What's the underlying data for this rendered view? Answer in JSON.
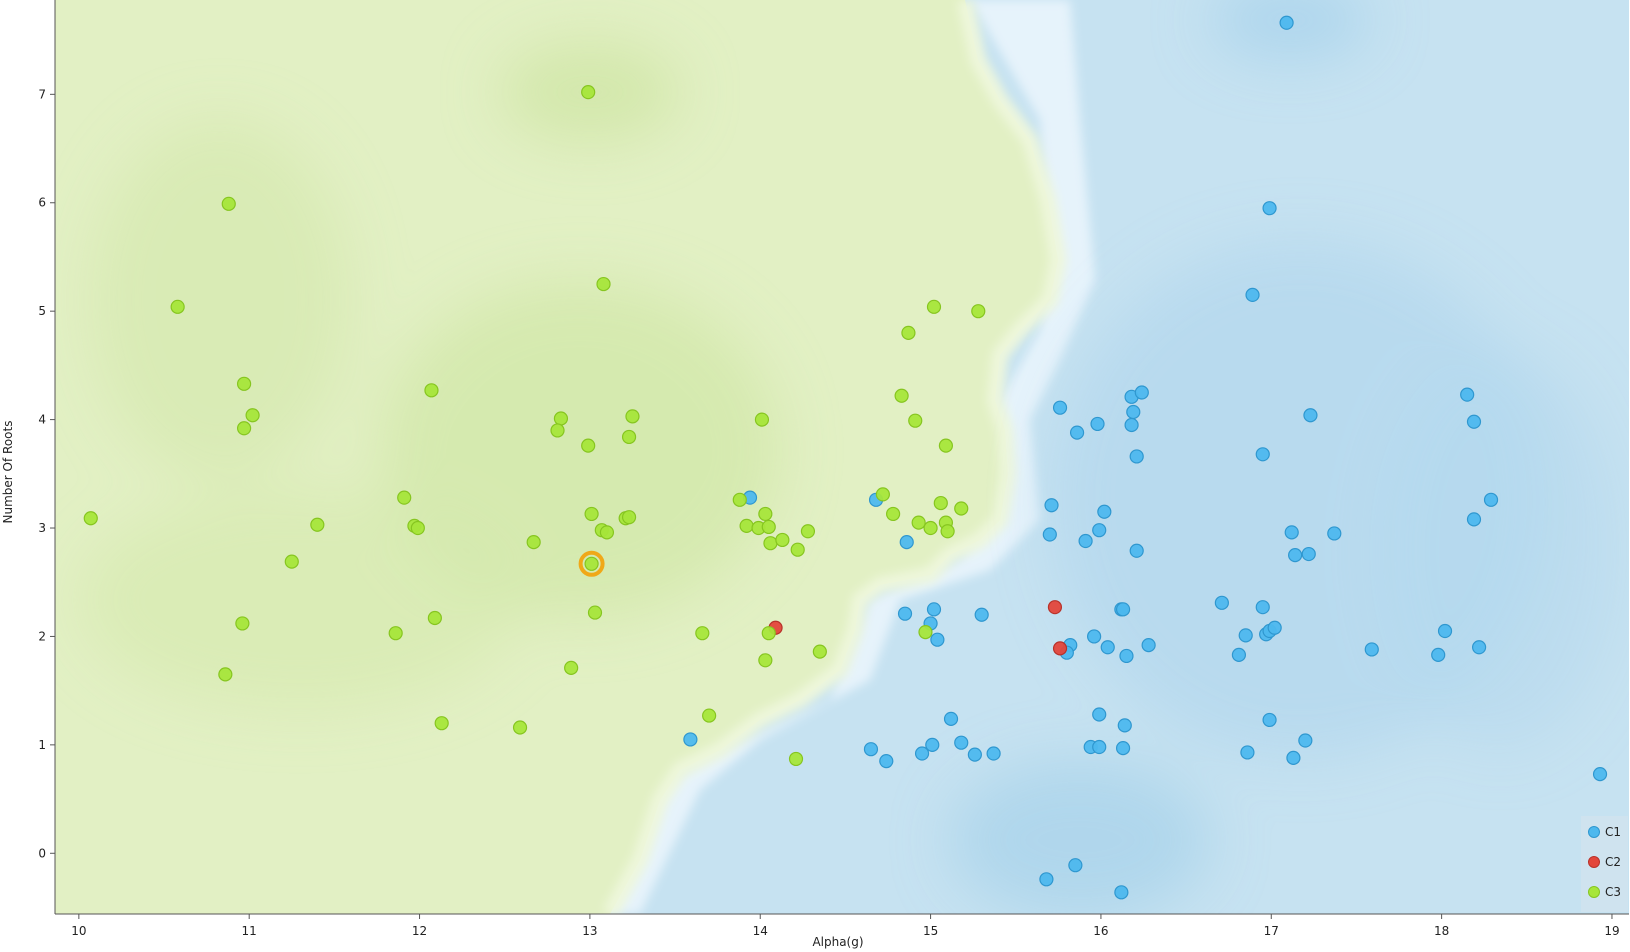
{
  "chart_data": {
    "type": "scatter",
    "title": "",
    "xlabel": "Alpha(g)",
    "ylabel": "Number Of Roots",
    "xlim": [
      9.86,
      19.1
    ],
    "ylim": [
      -0.56,
      7.87
    ],
    "xticks": [
      10,
      11,
      12,
      13,
      14,
      15,
      16,
      17,
      18,
      19
    ],
    "yticks": [
      0,
      1,
      2,
      3,
      4,
      5,
      6,
      7
    ],
    "grid": false,
    "legend_position": "bottom-right",
    "selected_point": {
      "series": "C3",
      "x": 13.01,
      "y": 2.67
    },
    "series": [
      {
        "name": "C1",
        "color": "#4db8ee",
        "points": [
          [
            17.09,
            7.66
          ],
          [
            16.99,
            5.95
          ],
          [
            16.89,
            5.15
          ],
          [
            15.76,
            4.11
          ],
          [
            15.86,
            3.88
          ],
          [
            15.98,
            3.96
          ],
          [
            16.18,
            4.21
          ],
          [
            16.24,
            4.25
          ],
          [
            16.19,
            4.07
          ],
          [
            16.18,
            3.95
          ],
          [
            16.21,
            3.66
          ],
          [
            16.95,
            3.68
          ],
          [
            17.23,
            4.04
          ],
          [
            18.15,
            4.23
          ],
          [
            18.19,
            3.98
          ],
          [
            15.71,
            3.21
          ],
          [
            15.7,
            2.94
          ],
          [
            15.91,
            2.88
          ],
          [
            15.99,
            2.98
          ],
          [
            16.02,
            3.15
          ],
          [
            16.21,
            2.79
          ],
          [
            17.12,
            2.96
          ],
          [
            17.14,
            2.75
          ],
          [
            17.22,
            2.76
          ],
          [
            17.37,
            2.95
          ],
          [
            18.19,
            3.08
          ],
          [
            18.29,
            3.26
          ],
          [
            13.94,
            3.28
          ],
          [
            14.68,
            3.26
          ],
          [
            14.86,
            2.87
          ],
          [
            15.02,
            2.25
          ],
          [
            15.0,
            2.12
          ],
          [
            15.04,
            1.97
          ],
          [
            14.85,
            2.21
          ],
          [
            15.3,
            2.2
          ],
          [
            15.82,
            1.92
          ],
          [
            15.8,
            1.85
          ],
          [
            15.96,
            2.0
          ],
          [
            16.04,
            1.9
          ],
          [
            16.12,
            2.25
          ],
          [
            16.13,
            2.25
          ],
          [
            16.15,
            1.82
          ],
          [
            16.28,
            1.92
          ],
          [
            16.71,
            2.31
          ],
          [
            16.95,
            2.27
          ],
          [
            16.85,
            2.01
          ],
          [
            16.97,
            2.02
          ],
          [
            16.99,
            2.05
          ],
          [
            17.02,
            2.08
          ],
          [
            16.81,
            1.83
          ],
          [
            17.59,
            1.88
          ],
          [
            17.98,
            1.83
          ],
          [
            18.02,
            2.05
          ],
          [
            18.22,
            1.9
          ],
          [
            15.12,
            1.24
          ],
          [
            15.99,
            1.28
          ],
          [
            16.14,
            1.18
          ],
          [
            16.99,
            1.23
          ],
          [
            17.2,
            1.04
          ],
          [
            13.59,
            1.05
          ],
          [
            14.65,
            0.96
          ],
          [
            14.74,
            0.85
          ],
          [
            14.95,
            0.92
          ],
          [
            15.01,
            1.0
          ],
          [
            15.18,
            1.02
          ],
          [
            15.26,
            0.91
          ],
          [
            15.37,
            0.92
          ],
          [
            15.94,
            0.98
          ],
          [
            15.99,
            0.98
          ],
          [
            16.13,
            0.97
          ],
          [
            16.86,
            0.93
          ],
          [
            17.13,
            0.88
          ],
          [
            18.93,
            0.73
          ],
          [
            15.85,
            -0.11
          ],
          [
            15.68,
            -0.24
          ],
          [
            16.12,
            -0.36
          ]
        ]
      },
      {
        "name": "C2",
        "color": "#e3463b",
        "points": [
          [
            14.09,
            2.08
          ],
          [
            15.73,
            2.27
          ],
          [
            15.76,
            1.89
          ]
        ]
      },
      {
        "name": "C3",
        "color": "#a7e63a",
        "points": [
          [
            12.99,
            7.02
          ],
          [
            10.88,
            5.99
          ],
          [
            13.08,
            5.25
          ],
          [
            10.58,
            5.04
          ],
          [
            15.02,
            5.04
          ],
          [
            15.28,
            5.0
          ],
          [
            14.87,
            4.8
          ],
          [
            10.97,
            4.33
          ],
          [
            12.07,
            4.27
          ],
          [
            14.83,
            4.22
          ],
          [
            10.97,
            3.92
          ],
          [
            11.02,
            4.04
          ],
          [
            12.83,
            4.01
          ],
          [
            12.81,
            3.9
          ],
          [
            12.99,
            3.76
          ],
          [
            13.25,
            4.03
          ],
          [
            13.23,
            3.84
          ],
          [
            14.01,
            4.0
          ],
          [
            14.91,
            3.99
          ],
          [
            15.09,
            3.76
          ],
          [
            10.07,
            3.09
          ],
          [
            11.4,
            3.03
          ],
          [
            11.91,
            3.28
          ],
          [
            11.97,
            3.02
          ],
          [
            11.99,
            3.0
          ],
          [
            12.67,
            2.87
          ],
          [
            13.01,
            3.13
          ],
          [
            13.07,
            2.98
          ],
          [
            13.1,
            2.96
          ],
          [
            13.21,
            3.09
          ],
          [
            13.23,
            3.1
          ],
          [
            13.88,
            3.26
          ],
          [
            13.92,
            3.02
          ],
          [
            13.99,
            3.0
          ],
          [
            14.03,
            3.13
          ],
          [
            14.05,
            3.01
          ],
          [
            14.06,
            2.86
          ],
          [
            14.13,
            2.89
          ],
          [
            14.22,
            2.8
          ],
          [
            14.28,
            2.97
          ],
          [
            14.72,
            3.31
          ],
          [
            14.78,
            3.13
          ],
          [
            14.93,
            3.05
          ],
          [
            15.0,
            3.0
          ],
          [
            15.06,
            3.23
          ],
          [
            15.09,
            3.05
          ],
          [
            15.1,
            2.97
          ],
          [
            15.18,
            3.18
          ],
          [
            11.25,
            2.69
          ],
          [
            13.01,
            2.67
          ],
          [
            13.03,
            2.22
          ],
          [
            10.96,
            2.12
          ],
          [
            11.86,
            2.03
          ],
          [
            12.09,
            2.17
          ],
          [
            13.66,
            2.03
          ],
          [
            14.05,
            2.03
          ],
          [
            14.97,
            2.04
          ],
          [
            10.86,
            1.65
          ],
          [
            12.89,
            1.71
          ],
          [
            14.03,
            1.78
          ],
          [
            14.35,
            1.86
          ],
          [
            12.13,
            1.2
          ],
          [
            12.59,
            1.16
          ],
          [
            13.7,
            1.27
          ],
          [
            14.21,
            0.87
          ]
        ]
      }
    ]
  }
}
